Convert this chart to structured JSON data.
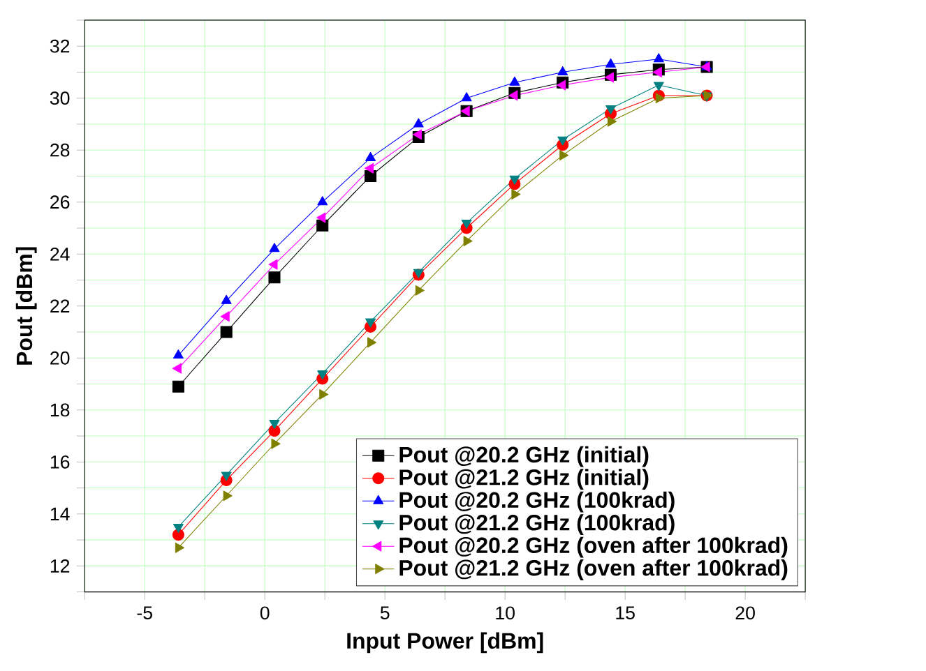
{
  "chart_data": {
    "type": "line",
    "xlabel": "Input Power [dBm]",
    "ylabel": "Pout [dBm]",
    "x": [
      -3.6,
      -1.6,
      0.4,
      2.4,
      4.4,
      6.4,
      8.4,
      10.4,
      12.4,
      14.4,
      16.4,
      18.4
    ],
    "xlim": [
      -7.5,
      22.5
    ],
    "xticks": [
      {
        "value": -7.5,
        "label": null
      },
      -5,
      {
        "value": -2.5,
        "label": null
      },
      0,
      {
        "value": 2.5,
        "label": null
      },
      5,
      {
        "value": 7.5,
        "label": null
      },
      10,
      {
        "value": 12.5,
        "label": null
      },
      15,
      {
        "value": 17.5,
        "label": null
      },
      20,
      {
        "value": 22.5,
        "label": null
      }
    ],
    "ylim": [
      11,
      33
    ],
    "yticks": [
      {
        "value": 11,
        "label": null
      },
      12,
      {
        "value": 13,
        "label": null
      },
      14,
      {
        "value": 15,
        "label": null
      },
      16,
      {
        "value": 17,
        "label": null
      },
      18,
      {
        "value": 19,
        "label": null
      },
      20,
      {
        "value": 21,
        "label": null
      },
      22,
      {
        "value": 23,
        "label": null
      },
      24,
      {
        "value": 25,
        "label": null
      },
      26,
      {
        "value": 27,
        "label": null
      },
      28,
      {
        "value": 29,
        "label": null
      },
      30,
      {
        "value": 31,
        "label": null
      },
      32,
      {
        "value": 33,
        "label": null
      }
    ],
    "grid": true,
    "legend": "bottom right",
    "line_style": "solid",
    "series": [
      {
        "name": "Pout @20.2 GHz (initial)",
        "color": "#000000",
        "marker": "square",
        "values": [
          18.9,
          21.0,
          23.1,
          25.1,
          27.0,
          28.5,
          29.5,
          30.2,
          30.6,
          30.9,
          31.1,
          31.2
        ]
      },
      {
        "name": "Pout @21.2 GHz (initial)",
        "color": "#ff0000",
        "marker": "circle",
        "values": [
          13.2,
          15.3,
          17.2,
          19.2,
          21.2,
          23.2,
          25.0,
          26.7,
          28.2,
          29.4,
          30.1,
          30.1
        ]
      },
      {
        "name": "Pout @20.2 GHz (100krad)",
        "color": "#0000ff",
        "marker": "triangle",
        "values": [
          20.1,
          22.2,
          24.2,
          26.0,
          27.7,
          29.0,
          30.0,
          30.6,
          31.0,
          31.3,
          31.5,
          31.2
        ]
      },
      {
        "name": "Pout @21.2 GHz (100krad)",
        "color": "#008080",
        "marker": "triangle-down",
        "values": [
          13.5,
          15.5,
          17.5,
          19.4,
          21.4,
          23.3,
          25.2,
          26.9,
          28.4,
          29.6,
          30.5,
          30.1
        ]
      },
      {
        "name": "Pout @20.2 GHz (oven after 100krad)",
        "color": "#ff00ff",
        "marker": "triangle-left",
        "values": [
          19.6,
          21.6,
          23.6,
          25.4,
          27.3,
          28.6,
          29.5,
          30.1,
          30.5,
          30.8,
          31.0,
          31.2
        ]
      },
      {
        "name": "Pout @21.2 GHz (oven after 100krad)",
        "color": "#808000",
        "marker": "triangle-right",
        "values": [
          12.7,
          14.7,
          16.7,
          18.6,
          20.6,
          22.6,
          24.5,
          26.3,
          27.8,
          29.1,
          30.0,
          30.1
        ]
      }
    ]
  }
}
